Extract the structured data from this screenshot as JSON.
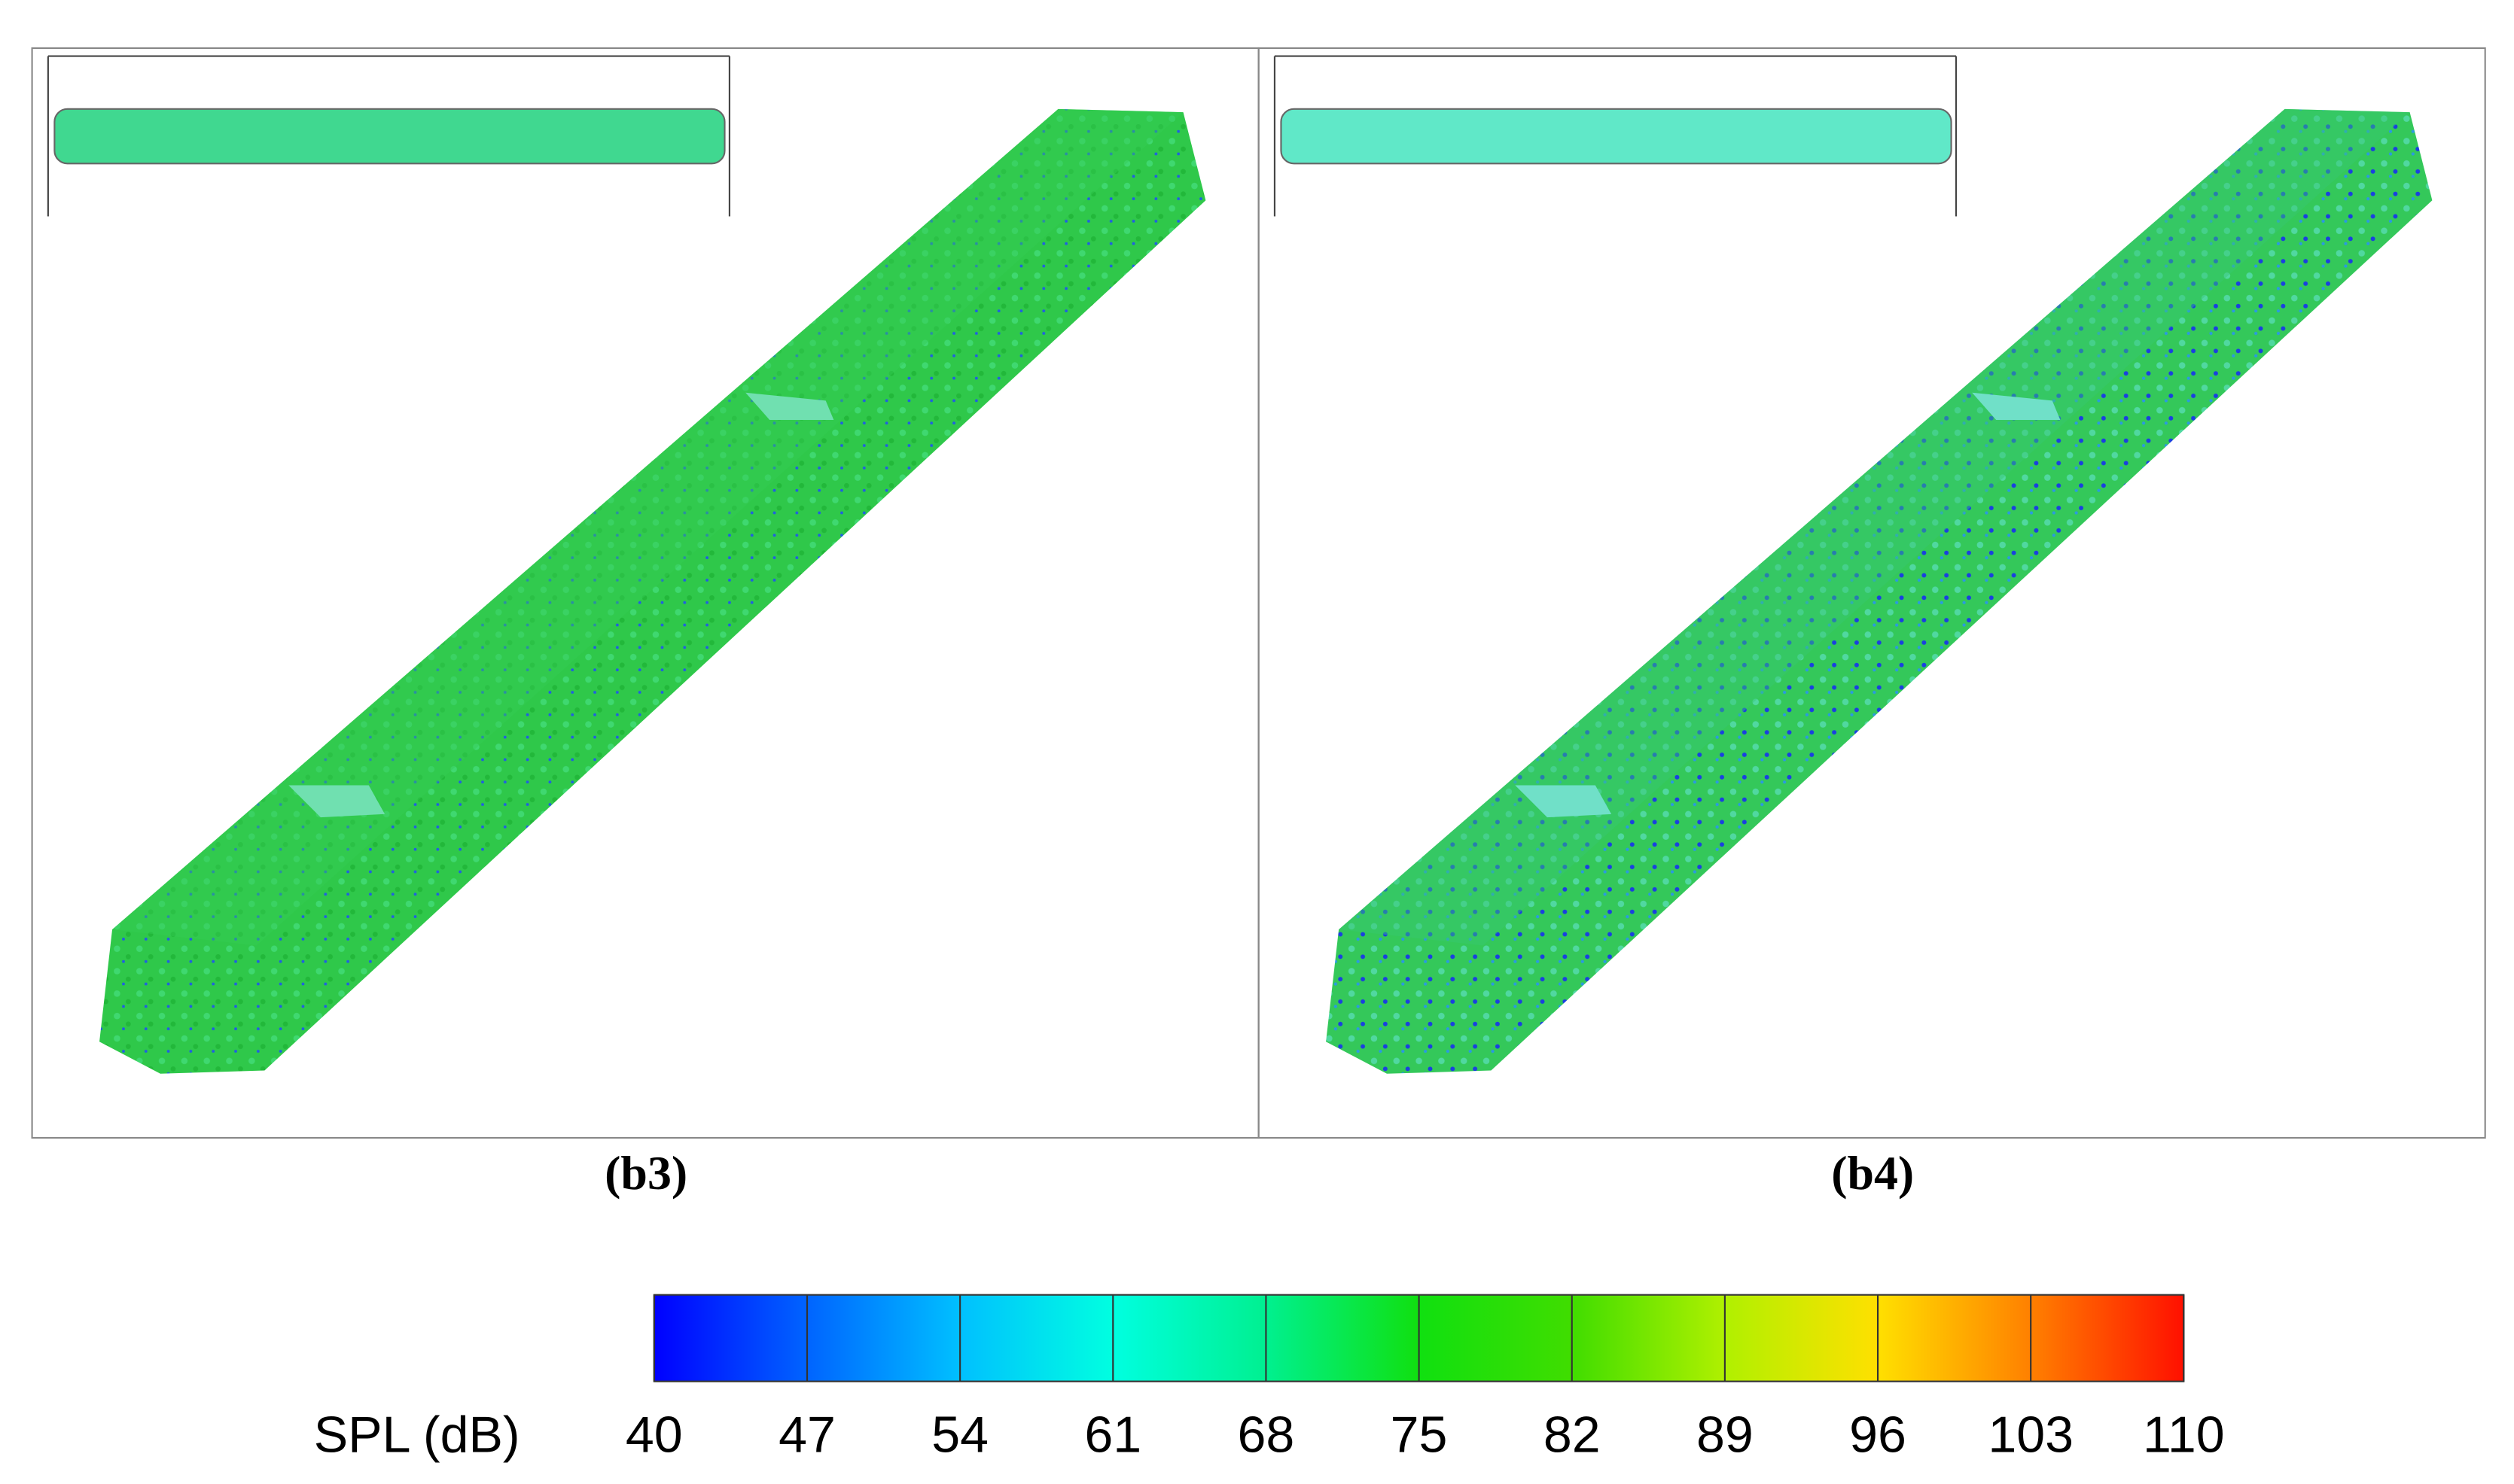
{
  "panels": [
    {
      "label": "(b3)"
    },
    {
      "label": "(b4)"
    }
  ],
  "colorbar": {
    "label": "SPL (dB)",
    "lim": [
      40,
      110
    ],
    "ticks": [
      40,
      47,
      54,
      61,
      68,
      75,
      82,
      89,
      96,
      103,
      110
    ],
    "colors": [
      "#0000ff",
      "#0064ff",
      "#00c0ff",
      "#00ffe0",
      "#00f090",
      "#10e010",
      "#40dd00",
      "#b0f000",
      "#ffe000",
      "#ff8000",
      "#ff1000"
    ]
  }
}
